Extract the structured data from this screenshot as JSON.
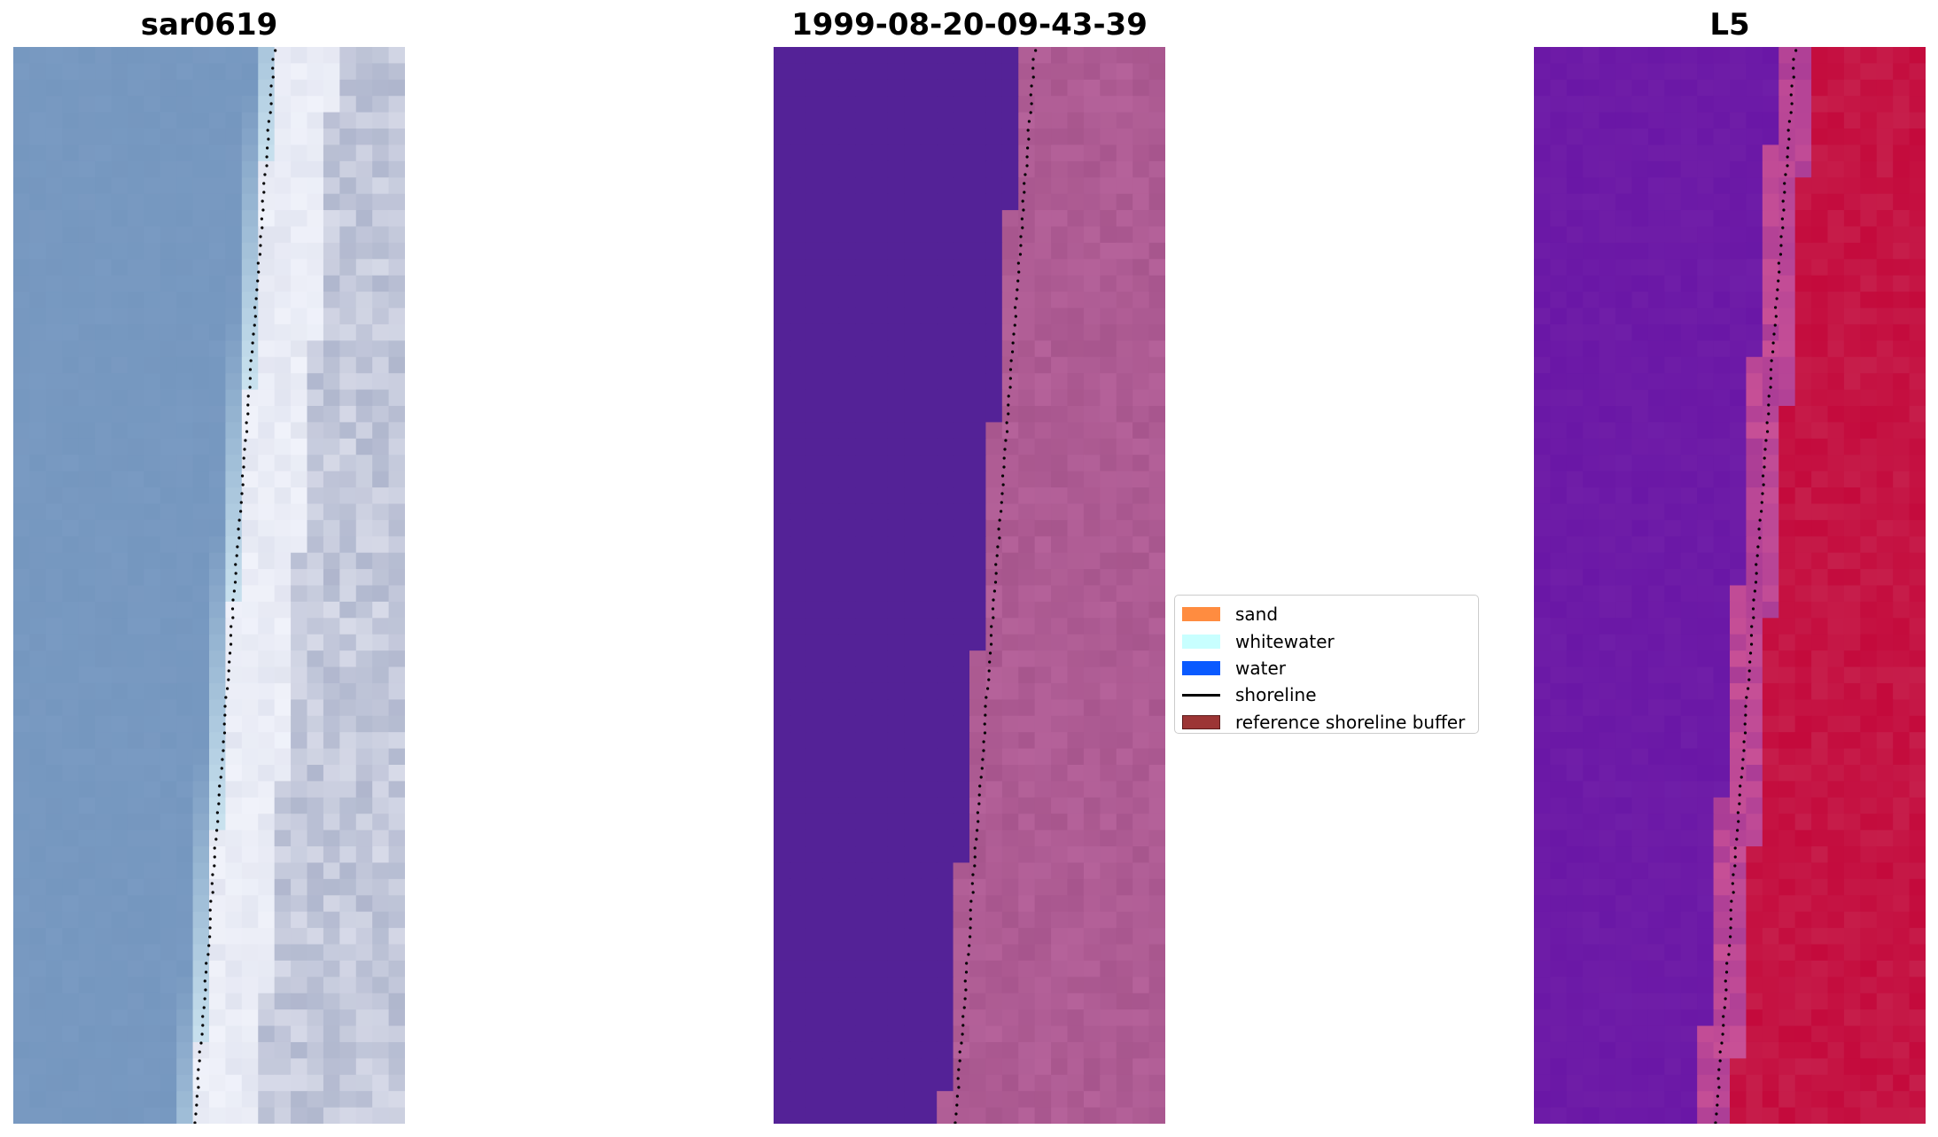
{
  "figure": {
    "panels": [
      {
        "id": "rgb",
        "title": "sar0619"
      },
      {
        "id": "classified",
        "title": "1999-08-20-09-43-39"
      },
      {
        "id": "index",
        "title": "L5"
      }
    ]
  },
  "legend": {
    "items": [
      {
        "label": "sand",
        "color": "#ff8c40",
        "kind": "patch"
      },
      {
        "label": "whitewater",
        "color": "#c8ffff",
        "kind": "patch"
      },
      {
        "label": "water",
        "color": "#0a5aff",
        "kind": "patch"
      },
      {
        "label": "shoreline",
        "color": "#000000",
        "kind": "line"
      },
      {
        "label": "reference shoreline buffer",
        "color": "#9c3535",
        "kind": "patch"
      }
    ]
  },
  "colors": {
    "water_rgb": "#7597bf",
    "water_classified": "#542297",
    "buffer_classified": "#b5629a",
    "index_low": "#6a17a6",
    "index_high": "#c40a3c"
  }
}
